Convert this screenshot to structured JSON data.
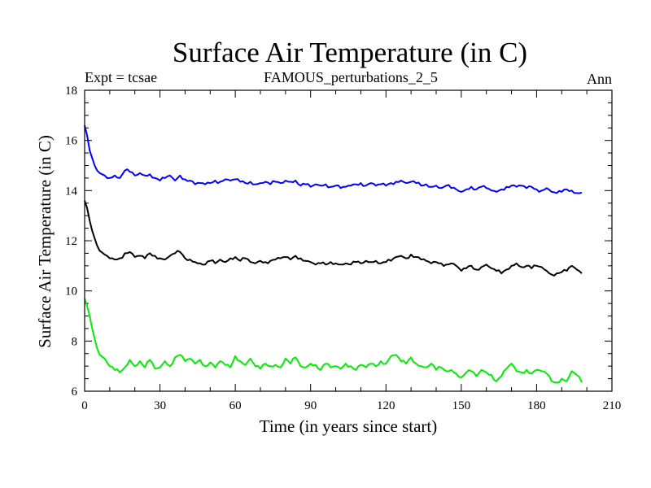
{
  "chart_data": {
    "type": "line",
    "title": "Surface Air Temperature (in C)",
    "subtitle_left": "Expt = tcsae",
    "subtitle_center": "FAMOUS_perturbations_2_5",
    "subtitle_right": "Ann",
    "xlabel": "Time (in years since start)",
    "ylabel": "Surface Air Temperature (in C)",
    "xlim": [
      0,
      210
    ],
    "ylim": [
      6,
      18
    ],
    "xticks": [
      0,
      30,
      60,
      90,
      120,
      150,
      180,
      210
    ],
    "yticks": [
      6,
      8,
      10,
      12,
      14,
      16,
      18
    ],
    "x_minor_step": 10,
    "y_minor_step": 0.5,
    "grid": false,
    "legend": "none",
    "series": [
      {
        "name": "blue",
        "color": "#0000ff",
        "keyframes": [
          [
            0,
            16.6
          ],
          [
            1,
            16.2
          ],
          [
            2,
            15.6
          ],
          [
            3,
            15.3
          ],
          [
            4,
            15.0
          ],
          [
            5,
            14.8
          ],
          [
            6,
            14.7
          ],
          [
            8,
            14.6
          ],
          [
            10,
            14.5
          ],
          [
            12,
            14.6
          ],
          [
            14,
            14.5
          ],
          [
            16,
            14.8
          ],
          [
            18,
            14.75
          ],
          [
            20,
            14.6
          ],
          [
            22,
            14.7
          ],
          [
            24,
            14.6
          ],
          [
            26,
            14.65
          ],
          [
            28,
            14.5
          ],
          [
            30,
            14.4
          ],
          [
            32,
            14.5
          ],
          [
            34,
            14.6
          ],
          [
            36,
            14.4
          ],
          [
            38,
            14.6
          ],
          [
            40,
            14.45
          ],
          [
            42,
            14.4
          ],
          [
            44,
            14.25
          ],
          [
            46,
            14.3
          ],
          [
            48,
            14.25
          ],
          [
            50,
            14.3
          ],
          [
            52,
            14.4
          ],
          [
            54,
            14.35
          ],
          [
            56,
            14.45
          ],
          [
            58,
            14.4
          ],
          [
            60,
            14.45
          ],
          [
            62,
            14.35
          ],
          [
            64,
            14.3
          ],
          [
            66,
            14.35
          ],
          [
            68,
            14.25
          ],
          [
            70,
            14.3
          ],
          [
            72,
            14.35
          ],
          [
            74,
            14.25
          ],
          [
            76,
            14.35
          ],
          [
            78,
            14.3
          ],
          [
            80,
            14.4
          ],
          [
            82,
            14.35
          ],
          [
            84,
            14.4
          ],
          [
            86,
            14.2
          ],
          [
            88,
            14.25
          ],
          [
            90,
            14.15
          ],
          [
            92,
            14.25
          ],
          [
            94,
            14.2
          ],
          [
            96,
            14.25
          ],
          [
            98,
            14.15
          ],
          [
            100,
            14.2
          ],
          [
            102,
            14.1
          ],
          [
            104,
            14.15
          ],
          [
            106,
            14.2
          ],
          [
            108,
            14.25
          ],
          [
            110,
            14.3
          ],
          [
            112,
            14.2
          ],
          [
            114,
            14.3
          ],
          [
            116,
            14.2
          ],
          [
            118,
            14.25
          ],
          [
            120,
            14.2
          ],
          [
            122,
            14.3
          ],
          [
            124,
            14.35
          ],
          [
            126,
            14.4
          ],
          [
            128,
            14.3
          ],
          [
            130,
            14.35
          ],
          [
            132,
            14.3
          ],
          [
            134,
            14.2
          ],
          [
            136,
            14.25
          ],
          [
            138,
            14.15
          ],
          [
            140,
            14.2
          ],
          [
            142,
            14.1
          ],
          [
            144,
            14.2
          ],
          [
            146,
            14.1
          ],
          [
            148,
            14.05
          ],
          [
            150,
            13.95
          ],
          [
            152,
            14.05
          ],
          [
            154,
            14.15
          ],
          [
            156,
            14.05
          ],
          [
            158,
            14.15
          ],
          [
            160,
            14.1
          ],
          [
            162,
            14.0
          ],
          [
            164,
            13.95
          ],
          [
            166,
            14.05
          ],
          [
            168,
            14.15
          ],
          [
            170,
            14.2
          ],
          [
            172,
            14.15
          ],
          [
            174,
            14.2
          ],
          [
            176,
            14.1
          ],
          [
            178,
            14.15
          ],
          [
            180,
            14.05
          ],
          [
            182,
            14.0
          ],
          [
            184,
            14.1
          ],
          [
            186,
            13.95
          ],
          [
            188,
            13.9
          ],
          [
            190,
            13.95
          ],
          [
            192,
            14.05
          ],
          [
            194,
            14.0
          ],
          [
            196,
            13.9
          ],
          [
            198,
            13.92
          ]
        ]
      },
      {
        "name": "black",
        "color": "#000000",
        "keyframes": [
          [
            0,
            13.6
          ],
          [
            1,
            13.3
          ],
          [
            2,
            12.8
          ],
          [
            3,
            12.4
          ],
          [
            4,
            12.1
          ],
          [
            5,
            11.8
          ],
          [
            6,
            11.6
          ],
          [
            8,
            11.45
          ],
          [
            10,
            11.3
          ],
          [
            12,
            11.25
          ],
          [
            14,
            11.3
          ],
          [
            16,
            11.5
          ],
          [
            18,
            11.55
          ],
          [
            20,
            11.35
          ],
          [
            22,
            11.4
          ],
          [
            24,
            11.3
          ],
          [
            26,
            11.5
          ],
          [
            28,
            11.4
          ],
          [
            30,
            11.3
          ],
          [
            32,
            11.25
          ],
          [
            34,
            11.4
          ],
          [
            36,
            11.5
          ],
          [
            38,
            11.55
          ],
          [
            40,
            11.3
          ],
          [
            42,
            11.25
          ],
          [
            44,
            11.15
          ],
          [
            46,
            11.1
          ],
          [
            48,
            11.05
          ],
          [
            50,
            11.2
          ],
          [
            52,
            11.1
          ],
          [
            54,
            11.25
          ],
          [
            56,
            11.15
          ],
          [
            58,
            11.3
          ],
          [
            60,
            11.35
          ],
          [
            62,
            11.2
          ],
          [
            64,
            11.3
          ],
          [
            66,
            11.15
          ],
          [
            68,
            11.1
          ],
          [
            70,
            11.2
          ],
          [
            72,
            11.15
          ],
          [
            74,
            11.2
          ],
          [
            76,
            11.25
          ],
          [
            78,
            11.3
          ],
          [
            80,
            11.35
          ],
          [
            82,
            11.25
          ],
          [
            84,
            11.4
          ],
          [
            86,
            11.3
          ],
          [
            88,
            11.2
          ],
          [
            90,
            11.15
          ],
          [
            92,
            11.05
          ],
          [
            94,
            11.1
          ],
          [
            96,
            11.05
          ],
          [
            98,
            11.15
          ],
          [
            100,
            11.1
          ],
          [
            102,
            11.05
          ],
          [
            104,
            11.1
          ],
          [
            106,
            11.05
          ],
          [
            108,
            11.15
          ],
          [
            110,
            11.1
          ],
          [
            112,
            11.2
          ],
          [
            114,
            11.15
          ],
          [
            116,
            11.2
          ],
          [
            118,
            11.1
          ],
          [
            120,
            11.15
          ],
          [
            122,
            11.2
          ],
          [
            124,
            11.35
          ],
          [
            126,
            11.4
          ],
          [
            128,
            11.3
          ],
          [
            130,
            11.45
          ],
          [
            132,
            11.35
          ],
          [
            134,
            11.25
          ],
          [
            136,
            11.2
          ],
          [
            138,
            11.1
          ],
          [
            140,
            11.15
          ],
          [
            142,
            11.1
          ],
          [
            144,
            11.05
          ],
          [
            146,
            11.1
          ],
          [
            148,
            11.0
          ],
          [
            150,
            10.8
          ],
          [
            152,
            10.9
          ],
          [
            154,
            11.0
          ],
          [
            156,
            10.85
          ],
          [
            158,
            10.95
          ],
          [
            160,
            11.05
          ],
          [
            162,
            10.9
          ],
          [
            164,
            10.8
          ],
          [
            166,
            10.7
          ],
          [
            168,
            10.85
          ],
          [
            170,
            11.0
          ],
          [
            172,
            11.1
          ],
          [
            174,
            10.95
          ],
          [
            176,
            11.0
          ],
          [
            178,
            10.9
          ],
          [
            180,
            11.0
          ],
          [
            182,
            10.95
          ],
          [
            184,
            10.8
          ],
          [
            186,
            10.65
          ],
          [
            188,
            10.7
          ],
          [
            190,
            10.75
          ],
          [
            192,
            10.8
          ],
          [
            194,
            11.0
          ],
          [
            196,
            10.85
          ],
          [
            198,
            10.7
          ]
        ]
      },
      {
        "name": "green",
        "color": "#00ee00",
        "keyframes": [
          [
            0,
            9.7
          ],
          [
            1,
            9.4
          ],
          [
            2,
            9.0
          ],
          [
            3,
            8.5
          ],
          [
            4,
            8.1
          ],
          [
            5,
            7.7
          ],
          [
            6,
            7.45
          ],
          [
            8,
            7.3
          ],
          [
            10,
            7.0
          ],
          [
            12,
            6.85
          ],
          [
            14,
            6.75
          ],
          [
            16,
            6.95
          ],
          [
            18,
            7.25
          ],
          [
            20,
            7.0
          ],
          [
            22,
            7.2
          ],
          [
            24,
            6.95
          ],
          [
            26,
            7.25
          ],
          [
            28,
            6.9
          ],
          [
            30,
            6.95
          ],
          [
            32,
            7.2
          ],
          [
            34,
            7.0
          ],
          [
            36,
            7.35
          ],
          [
            38,
            7.45
          ],
          [
            40,
            7.2
          ],
          [
            42,
            7.3
          ],
          [
            44,
            7.1
          ],
          [
            46,
            7.25
          ],
          [
            48,
            7.0
          ],
          [
            50,
            7.15
          ],
          [
            52,
            6.95
          ],
          [
            54,
            7.2
          ],
          [
            56,
            7.05
          ],
          [
            58,
            6.95
          ],
          [
            60,
            7.4
          ],
          [
            62,
            7.2
          ],
          [
            64,
            7.05
          ],
          [
            66,
            7.3
          ],
          [
            68,
            7.0
          ],
          [
            70,
            6.9
          ],
          [
            72,
            7.1
          ],
          [
            74,
            7.0
          ],
          [
            76,
            7.05
          ],
          [
            78,
            6.95
          ],
          [
            80,
            7.3
          ],
          [
            82,
            7.1
          ],
          [
            84,
            7.35
          ],
          [
            86,
            7.0
          ],
          [
            88,
            6.95
          ],
          [
            90,
            7.1
          ],
          [
            92,
            7.05
          ],
          [
            94,
            6.85
          ],
          [
            96,
            7.1
          ],
          [
            98,
            6.95
          ],
          [
            100,
            7.0
          ],
          [
            102,
            6.9
          ],
          [
            104,
            7.1
          ],
          [
            106,
            7.0
          ],
          [
            108,
            6.85
          ],
          [
            110,
            7.05
          ],
          [
            112,
            6.95
          ],
          [
            114,
            7.1
          ],
          [
            116,
            7.0
          ],
          [
            118,
            7.2
          ],
          [
            120,
            7.1
          ],
          [
            122,
            7.4
          ],
          [
            124,
            7.45
          ],
          [
            126,
            7.2
          ],
          [
            128,
            7.1
          ],
          [
            130,
            7.35
          ],
          [
            132,
            7.1
          ],
          [
            134,
            7.0
          ],
          [
            136,
            6.95
          ],
          [
            138,
            7.1
          ],
          [
            140,
            6.85
          ],
          [
            142,
            6.95
          ],
          [
            144,
            6.8
          ],
          [
            146,
            6.85
          ],
          [
            148,
            6.7
          ],
          [
            150,
            6.55
          ],
          [
            152,
            6.75
          ],
          [
            154,
            6.8
          ],
          [
            156,
            6.6
          ],
          [
            158,
            6.85
          ],
          [
            160,
            6.75
          ],
          [
            162,
            6.65
          ],
          [
            164,
            6.4
          ],
          [
            166,
            6.6
          ],
          [
            168,
            6.9
          ],
          [
            170,
            7.1
          ],
          [
            172,
            6.8
          ],
          [
            174,
            6.75
          ],
          [
            176,
            6.85
          ],
          [
            178,
            6.7
          ],
          [
            180,
            6.85
          ],
          [
            182,
            6.8
          ],
          [
            184,
            6.7
          ],
          [
            186,
            6.4
          ],
          [
            188,
            6.35
          ],
          [
            190,
            6.5
          ],
          [
            192,
            6.4
          ],
          [
            194,
            6.8
          ],
          [
            196,
            6.65
          ],
          [
            198,
            6.35
          ]
        ]
      }
    ]
  }
}
